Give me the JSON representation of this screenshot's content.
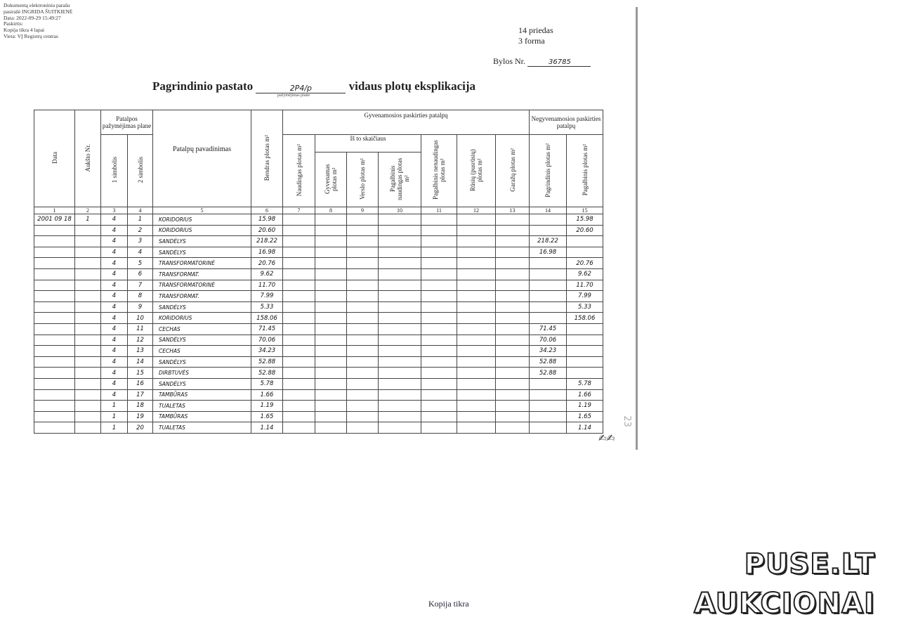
{
  "stamp": [
    "Dokumentą elektroniniu parašu",
    "pasirašė INGRIDA ŠUITKIENĖ",
    "Data: 2022-09-29 15:49:27",
    "Paskirtis:",
    "Kopija tikra  4 lapai",
    "Vieta: VĮ Registrų centras"
  ],
  "form": {
    "annex": "14 priedas",
    "form": "3 forma",
    "case_label": "Bylos Nr.",
    "case_no": "36785"
  },
  "title": {
    "prefix": "Pagrindinio pastato",
    "mark": "2P4/p",
    "suffix": "vidaus plotų eksplikacija",
    "under": "pažymėjimas plane"
  },
  "headers": {
    "data": "Data",
    "floor": "Aukšto Nr.",
    "mark_group": "Patalpos pažymėjimas plane",
    "s1": "1 simbolis",
    "s2": "2 simbolis",
    "name": "Patalpų pavadinimas",
    "total": "Bendras plotas  m²",
    "res_group": "Gyvenamosios paskirties patalpų",
    "useful": "Naudingas plotas m²",
    "of_which": "Iš to skaičiaus",
    "living": "Gyvenamas plotas  m²",
    "business": "Verslo plotas m²",
    "aux_useful": "Pagalbinis naudingas plotas  m²",
    "aux_nonuseful": "Pagalbinis nenaudingas plotas m²",
    "basement": "Rūsių (pusrūsių) plotas  m²",
    "garage": "Garažų  plotas  m²",
    "nonres_group": "Negyvenamosios paskirties patalpų",
    "main_area": "Pagrindinis plotas m²",
    "aux_area": "Pagalbinis  plotas m²",
    "numbers": [
      "1",
      "2",
      "3",
      "4",
      "5",
      "6",
      "7",
      "8",
      "9",
      "10",
      "11",
      "12",
      "13",
      "14",
      "15"
    ]
  },
  "rows": [
    {
      "date": "2001 09 18",
      "floor": "1",
      "s1": "4",
      "s2": "1",
      "name": "KORIDORIUS",
      "total": "15.98",
      "c14": "",
      "c15": "15.98"
    },
    {
      "date": "",
      "floor": "",
      "s1": "4",
      "s2": "2",
      "name": "KORIDORIUS",
      "total": "20.60",
      "c14": "",
      "c15": "20.60"
    },
    {
      "date": "",
      "floor": "",
      "s1": "4",
      "s2": "3",
      "name": "SANDĖLYS",
      "total": "218.22",
      "c14": "218.22",
      "c15": ""
    },
    {
      "date": "",
      "floor": "",
      "s1": "4",
      "s2": "4",
      "name": "SANDĖLYS",
      "total": "16.98",
      "c14": "16.98",
      "c15": ""
    },
    {
      "date": "",
      "floor": "",
      "s1": "4",
      "s2": "5",
      "name": "TRANSFORMATORINĖ",
      "total": "20.76",
      "c14": "",
      "c15": "20.76"
    },
    {
      "date": "",
      "floor": "",
      "s1": "4",
      "s2": "6",
      "name": "TRANSFORMAT.",
      "total": "9.62",
      "c14": "",
      "c15": "9.62"
    },
    {
      "date": "",
      "floor": "",
      "s1": "4",
      "s2": "7",
      "name": "TRANSFORMATORINĖ",
      "total": "11.70",
      "c14": "",
      "c15": "11.70"
    },
    {
      "date": "",
      "floor": "",
      "s1": "4",
      "s2": "8",
      "name": "TRANSFORMAT.",
      "total": "7.99",
      "c14": "",
      "c15": "7.99"
    },
    {
      "date": "",
      "floor": "",
      "s1": "4",
      "s2": "9",
      "name": "SANDĖLYS",
      "total": "5.33",
      "c14": "",
      "c15": "5.33"
    },
    {
      "date": "",
      "floor": "",
      "s1": "4",
      "s2": "10",
      "name": "KORIDORIUS",
      "total": "158.06",
      "c14": "",
      "c15": "158.06"
    },
    {
      "date": "",
      "floor": "",
      "s1": "4",
      "s2": "11",
      "name": "CECHAS",
      "total": "71.45",
      "c14": "71.45",
      "c15": ""
    },
    {
      "date": "",
      "floor": "",
      "s1": "4",
      "s2": "12",
      "name": "SANDĖLYS",
      "total": "70.06",
      "c14": "70.06",
      "c15": ""
    },
    {
      "date": "",
      "floor": "",
      "s1": "4",
      "s2": "13",
      "name": "CECHAS",
      "total": "34.23",
      "c14": "34.23",
      "c15": ""
    },
    {
      "date": "",
      "floor": "",
      "s1": "4",
      "s2": "14",
      "name": "SANDĖLYS",
      "total": "52.88",
      "c14": "52.88",
      "c15": ""
    },
    {
      "date": "",
      "floor": "",
      "s1": "4",
      "s2": "15",
      "name": "DIRBTUVĖS",
      "total": "52.88",
      "c14": "52.88",
      "c15": ""
    },
    {
      "date": "",
      "floor": "",
      "s1": "4",
      "s2": "16",
      "name": "SANDĖLYS",
      "total": "5.78",
      "c14": "",
      "c15": "5.78"
    },
    {
      "date": "",
      "floor": "",
      "s1": "4",
      "s2": "17",
      "name": "TAMBŪRAS",
      "total": "1.66",
      "c14": "",
      "c15": "1.66"
    },
    {
      "date": "",
      "floor": "",
      "s1": "1",
      "s2": "18",
      "name": "TUALETAS",
      "total": "1.19",
      "c14": "",
      "c15": "1.19"
    },
    {
      "date": "",
      "floor": "",
      "s1": "1",
      "s2": "19",
      "name": "TAMBŪRAS",
      "total": "1.65",
      "c14": "",
      "c15": "1.65"
    },
    {
      "date": "",
      "floor": "",
      "s1": "1",
      "s2": "20",
      "name": "TUALETAS",
      "total": "1.14",
      "c14": "",
      "c15": "1.14"
    }
  ],
  "page_mark": "23",
  "footer": "Kopija tikra",
  "watermark": [
    "PUSE.LT",
    "AUKCIONAI"
  ]
}
